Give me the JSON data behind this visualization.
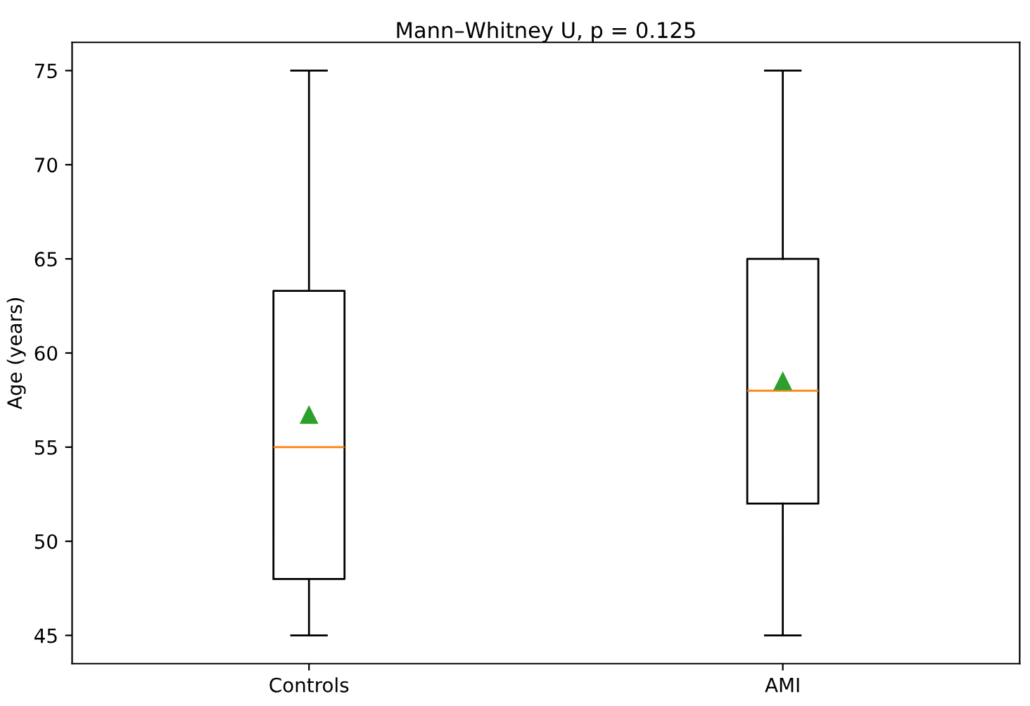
{
  "chart_data": {
    "type": "box",
    "title": "Mann–Whitney U, p = 0.125",
    "ylabel": "Age (years)",
    "categories": [
      "Controls",
      "AMI"
    ],
    "boxes": [
      {
        "low": 45,
        "q1": 48,
        "median": 55,
        "q3": 63.3,
        "high": 75,
        "mean": 56.7
      },
      {
        "low": 45,
        "q1": 52,
        "median": 58,
        "q3": 65,
        "high": 75,
        "mean": 58.5
      }
    ],
    "ylim": [
      43.5,
      76.5
    ],
    "yticks": [
      45,
      50,
      55,
      60,
      65,
      70,
      75
    ],
    "grid": false,
    "marker": "triangle"
  }
}
